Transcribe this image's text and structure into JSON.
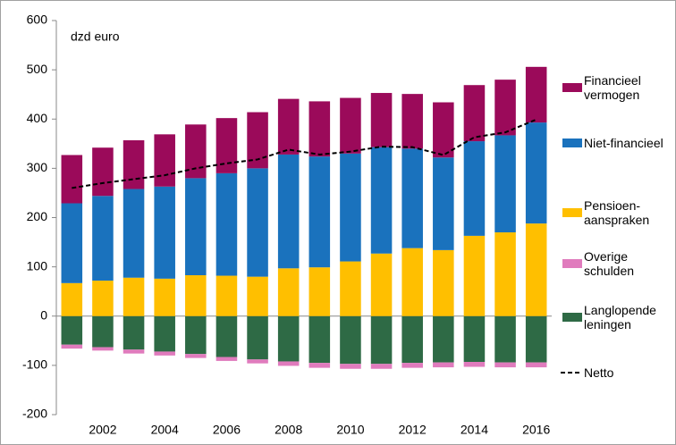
{
  "chart_data": {
    "type": "bar",
    "stacked": true,
    "annotation": "dzd euro",
    "categories": [
      null,
      "2002",
      null,
      "2004",
      null,
      "2006",
      null,
      "2008",
      null,
      "2010",
      null,
      "2012",
      null,
      "2014",
      null,
      "2016"
    ],
    "ylim": [
      -200,
      600
    ],
    "yticks": [
      -200,
      -100,
      0,
      100,
      200,
      300,
      400,
      500,
      600
    ],
    "series": [
      {
        "name": "Financieel\nvermogen",
        "type": "bar",
        "color": "#9b0a5a",
        "values": [
          98,
          98,
          99,
          106,
          109,
          112,
          114,
          113,
          112,
          113,
          110,
          111,
          112,
          114,
          113,
          113
        ]
      },
      {
        "name": "Niet-financieel",
        "type": "bar",
        "color": "#1a72bd",
        "values": [
          162,
          172,
          180,
          187,
          197,
          208,
          220,
          231,
          225,
          219,
          216,
          202,
          188,
          192,
          197,
          205
        ]
      },
      {
        "name": "Pensioen-\naanspraken",
        "type": "bar",
        "color": "#ffbf00",
        "values": [
          67,
          72,
          78,
          76,
          83,
          82,
          80,
          97,
          99,
          111,
          127,
          138,
          134,
          163,
          170,
          188
        ]
      },
      {
        "name": "Overige\nschulden",
        "type": "bar",
        "color": "#e07bbd",
        "values": [
          -8,
          -7,
          -8,
          -8,
          -8,
          -8,
          -8,
          -9,
          -10,
          -10,
          -10,
          -10,
          -10,
          -10,
          -10,
          -10
        ]
      },
      {
        "name": "Langlopende\nleningen",
        "type": "bar",
        "color": "#2e6a45",
        "values": [
          -58,
          -63,
          -68,
          -72,
          -77,
          -83,
          -88,
          -92,
          -95,
          -97,
          -97,
          -95,
          -94,
          -93,
          -94,
          -94
        ]
      },
      {
        "name": "Netto",
        "type": "line",
        "color": "#000000",
        "dashed": true,
        "values": [
          260,
          270,
          278,
          286,
          300,
          310,
          318,
          338,
          328,
          334,
          344,
          343,
          327,
          363,
          373,
          399
        ]
      }
    ]
  }
}
